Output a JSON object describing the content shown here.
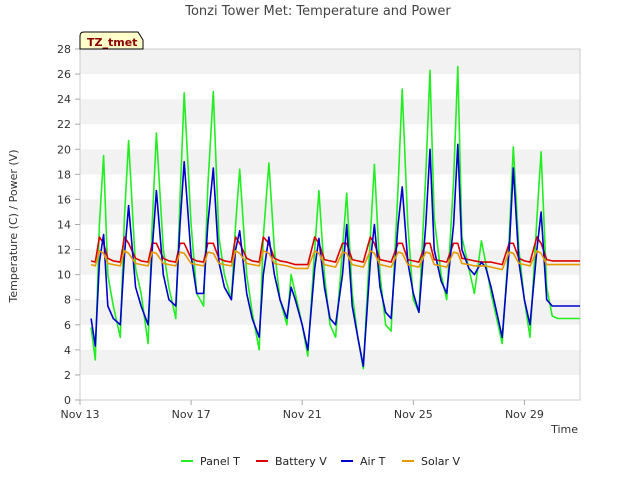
{
  "chart_data": {
    "type": "line",
    "title": "Tonzi Tower Met: Temperature and Power",
    "badge": "TZ_tmet",
    "xlabel": "Time",
    "ylabel": "Temperature (C) / Power (V)",
    "xlim": [
      13.0,
      31.0
    ],
    "ylim": [
      0,
      28
    ],
    "yticks": [
      0,
      2,
      4,
      6,
      8,
      10,
      12,
      14,
      16,
      18,
      20,
      22,
      24,
      26,
      28
    ],
    "xticks": [
      {
        "value": 13,
        "label": "Nov 13"
      },
      {
        "value": 17,
        "label": "Nov 17"
      },
      {
        "value": 21,
        "label": "Nov 21"
      },
      {
        "value": 25,
        "label": "Nov 25"
      },
      {
        "value": 29,
        "label": "Nov 29"
      }
    ],
    "grid": "horizontal bands",
    "legend_position": "bottom",
    "series": [
      {
        "name": "Panel T",
        "color": "#22ee22",
        "x": [
          13.4,
          13.55,
          13.7,
          13.85,
          14.0,
          14.2,
          14.45,
          14.6,
          14.75,
          15.0,
          15.2,
          15.45,
          15.6,
          15.75,
          16.0,
          16.2,
          16.45,
          16.6,
          16.75,
          17.0,
          17.2,
          17.45,
          17.6,
          17.8,
          18.0,
          18.2,
          18.45,
          18.6,
          18.75,
          19.0,
          19.2,
          19.45,
          19.6,
          19.8,
          20.0,
          20.2,
          20.45,
          20.6,
          20.75,
          21.0,
          21.2,
          21.45,
          21.6,
          21.8,
          22.0,
          22.2,
          22.45,
          22.6,
          22.8,
          23.0,
          23.2,
          23.45,
          23.6,
          23.8,
          24.0,
          24.2,
          24.45,
          24.6,
          24.8,
          25.0,
          25.2,
          25.45,
          25.6,
          25.75,
          26.0,
          26.2,
          26.45,
          26.6,
          26.75,
          27.0,
          27.2,
          27.45,
          27.6,
          27.8,
          28.0,
          28.2,
          28.45,
          28.6,
          28.8,
          29.0,
          29.2,
          29.45,
          29.6,
          29.8,
          30.0,
          30.2,
          30.45,
          30.6,
          30.8,
          31.0
        ],
        "y": [
          5.8,
          3.2,
          14.0,
          19.5,
          10.0,
          7.5,
          5.0,
          14.5,
          20.7,
          10.5,
          8.5,
          4.5,
          14.0,
          21.3,
          12.0,
          9.0,
          6.5,
          16.0,
          24.5,
          14.0,
          8.5,
          7.5,
          17.0,
          24.6,
          13.0,
          10.0,
          8.0,
          14.0,
          18.4,
          10.0,
          7.0,
          4.0,
          13.0,
          18.9,
          12.0,
          8.0,
          6.0,
          10.0,
          8.5,
          6.0,
          3.5,
          12.0,
          16.7,
          10.0,
          6.0,
          5.0,
          12.0,
          16.5,
          8.5,
          5.0,
          2.5,
          13.0,
          18.8,
          10.0,
          6.0,
          5.5,
          17.0,
          24.8,
          14.0,
          8.0,
          7.0,
          18.0,
          26.3,
          14.5,
          10.0,
          8.0,
          17.5,
          26.6,
          13.0,
          10.5,
          8.5,
          12.7,
          11.0,
          8.5,
          6.5,
          4.5,
          13.0,
          20.2,
          12.0,
          8.0,
          5.0,
          14.5,
          19.8,
          9.0,
          6.7,
          6.5,
          6.5,
          6.5,
          6.5,
          6.5
        ]
      },
      {
        "name": "Battery V",
        "color": "#dd0000",
        "x": [
          13.4,
          13.55,
          13.7,
          13.85,
          14.0,
          14.2,
          14.45,
          14.6,
          14.75,
          15.0,
          15.2,
          15.45,
          15.6,
          15.75,
          16.0,
          16.2,
          16.45,
          16.6,
          16.75,
          17.0,
          17.2,
          17.45,
          17.6,
          17.8,
          18.0,
          18.2,
          18.45,
          18.6,
          18.75,
          19.0,
          19.2,
          19.45,
          19.6,
          19.8,
          20.0,
          20.2,
          20.45,
          20.6,
          20.75,
          21.0,
          21.2,
          21.45,
          21.6,
          21.8,
          22.0,
          22.2,
          22.45,
          22.6,
          22.8,
          23.0,
          23.2,
          23.45,
          23.6,
          23.8,
          24.0,
          24.2,
          24.45,
          24.6,
          24.8,
          25.0,
          25.2,
          25.45,
          25.6,
          25.75,
          26.0,
          26.2,
          26.45,
          26.6,
          26.75,
          27.0,
          27.2,
          27.45,
          27.6,
          27.8,
          28.0,
          28.2,
          28.45,
          28.6,
          28.8,
          29.0,
          29.2,
          29.45,
          29.6,
          29.8,
          30.0,
          30.2,
          30.45,
          30.6,
          30.8,
          31.0
        ],
        "y": [
          11.1,
          11.0,
          13.0,
          12.5,
          11.3,
          11.1,
          11.0,
          13.0,
          12.5,
          11.3,
          11.1,
          11.0,
          12.5,
          12.5,
          11.3,
          11.1,
          11.0,
          12.5,
          12.5,
          11.3,
          11.1,
          11.0,
          12.5,
          12.5,
          11.3,
          11.1,
          11.0,
          13.0,
          12.5,
          11.3,
          11.1,
          11.0,
          13.0,
          12.5,
          11.3,
          11.1,
          11.0,
          10.9,
          10.8,
          10.8,
          10.8,
          13.0,
          12.5,
          11.2,
          11.1,
          11.0,
          12.5,
          12.5,
          11.2,
          11.1,
          11.0,
          13.0,
          12.5,
          11.2,
          11.1,
          11.0,
          12.5,
          12.5,
          11.2,
          11.1,
          11.0,
          12.5,
          12.5,
          11.2,
          11.1,
          11.0,
          12.5,
          12.5,
          11.3,
          11.2,
          11.1,
          11.0,
          11.0,
          11.0,
          10.9,
          10.8,
          12.5,
          12.5,
          11.3,
          11.1,
          11.0,
          13.0,
          12.5,
          11.2,
          11.1,
          11.1,
          11.1,
          11.1,
          11.1,
          11.1
        ]
      },
      {
        "name": "Air T",
        "color": "#0000cc",
        "x": [
          13.4,
          13.55,
          13.7,
          13.85,
          14.0,
          14.2,
          14.45,
          14.6,
          14.75,
          15.0,
          15.2,
          15.45,
          15.6,
          15.75,
          16.0,
          16.2,
          16.45,
          16.6,
          16.75,
          17.0,
          17.2,
          17.45,
          17.6,
          17.8,
          18.0,
          18.2,
          18.45,
          18.6,
          18.75,
          19.0,
          19.2,
          19.45,
          19.6,
          19.8,
          20.0,
          20.2,
          20.45,
          20.6,
          20.75,
          21.0,
          21.2,
          21.45,
          21.6,
          21.8,
          22.0,
          22.2,
          22.45,
          22.6,
          22.8,
          23.0,
          23.2,
          23.45,
          23.6,
          23.8,
          24.0,
          24.2,
          24.45,
          24.6,
          24.8,
          25.0,
          25.2,
          25.45,
          25.6,
          25.75,
          26.0,
          26.2,
          26.45,
          26.6,
          26.75,
          27.0,
          27.2,
          27.45,
          27.6,
          27.8,
          28.0,
          28.2,
          28.45,
          28.6,
          28.8,
          29.0,
          29.2,
          29.45,
          29.6,
          29.8,
          30.0,
          30.2,
          30.45,
          30.6,
          30.8,
          31.0
        ],
        "y": [
          6.5,
          4.3,
          11.0,
          13.2,
          7.5,
          6.5,
          6.0,
          11.5,
          15.5,
          9.0,
          7.5,
          6.0,
          12.0,
          16.7,
          10.0,
          8.0,
          7.5,
          14.0,
          19.0,
          11.5,
          8.5,
          8.5,
          14.0,
          18.5,
          11.0,
          9.0,
          8.0,
          12.0,
          13.5,
          8.5,
          6.5,
          5.0,
          10.0,
          13.0,
          10.0,
          8.0,
          6.5,
          9.0,
          8.0,
          6.0,
          4.0,
          10.5,
          12.9,
          9.0,
          6.5,
          6.0,
          10.0,
          14.0,
          7.5,
          5.0,
          2.7,
          11.0,
          14.0,
          9.0,
          7.0,
          6.5,
          14.0,
          17.0,
          11.0,
          8.5,
          7.0,
          14.0,
          20.0,
          12.0,
          9.5,
          8.5,
          14.0,
          20.4,
          12.0,
          10.5,
          10.0,
          11.0,
          10.6,
          9.0,
          7.0,
          5.0,
          12.0,
          18.5,
          11.0,
          8.0,
          6.0,
          12.0,
          15.0,
          8.0,
          7.5,
          7.5,
          7.5,
          7.5,
          7.5,
          7.5
        ]
      },
      {
        "name": "Solar V",
        "color": "#e69a00",
        "x": [
          13.4,
          13.55,
          13.7,
          13.85,
          14.0,
          14.2,
          14.45,
          14.6,
          14.75,
          15.0,
          15.2,
          15.45,
          15.6,
          15.75,
          16.0,
          16.2,
          16.45,
          16.6,
          16.75,
          17.0,
          17.2,
          17.45,
          17.6,
          17.8,
          18.0,
          18.2,
          18.45,
          18.6,
          18.75,
          19.0,
          19.2,
          19.45,
          19.6,
          19.8,
          20.0,
          20.2,
          20.45,
          20.6,
          20.75,
          21.0,
          21.2,
          21.45,
          21.6,
          21.8,
          22.0,
          22.2,
          22.45,
          22.6,
          22.8,
          23.0,
          23.2,
          23.45,
          23.6,
          23.8,
          24.0,
          24.2,
          24.45,
          24.6,
          24.8,
          25.0,
          25.2,
          25.45,
          25.6,
          25.75,
          26.0,
          26.2,
          26.45,
          26.6,
          26.75,
          27.0,
          27.2,
          27.45,
          27.6,
          27.8,
          28.0,
          28.2,
          28.45,
          28.6,
          28.8,
          29.0,
          29.2,
          29.45,
          29.6,
          29.8,
          30.0,
          30.2,
          30.45,
          30.6,
          30.8,
          31.0
        ],
        "y": [
          10.8,
          10.7,
          11.9,
          11.7,
          10.9,
          10.8,
          10.7,
          11.9,
          11.7,
          10.9,
          10.8,
          10.7,
          11.8,
          11.7,
          10.9,
          10.8,
          10.7,
          11.8,
          11.7,
          10.9,
          10.8,
          10.7,
          11.8,
          11.7,
          10.9,
          10.8,
          10.7,
          11.9,
          11.7,
          10.9,
          10.8,
          10.7,
          11.9,
          11.7,
          10.9,
          10.8,
          10.7,
          10.6,
          10.5,
          10.5,
          10.5,
          11.9,
          11.7,
          10.8,
          10.7,
          10.6,
          11.8,
          11.7,
          10.8,
          10.7,
          10.6,
          11.9,
          11.7,
          10.8,
          10.7,
          10.6,
          11.8,
          11.7,
          10.8,
          10.7,
          10.6,
          11.8,
          11.7,
          10.8,
          10.7,
          10.6,
          11.8,
          11.7,
          10.9,
          10.8,
          10.7,
          10.7,
          10.7,
          10.6,
          10.5,
          10.4,
          11.8,
          11.7,
          10.9,
          10.8,
          10.7,
          11.9,
          11.7,
          10.8,
          10.8,
          10.8,
          10.8,
          10.8,
          10.8,
          10.8
        ]
      }
    ]
  }
}
